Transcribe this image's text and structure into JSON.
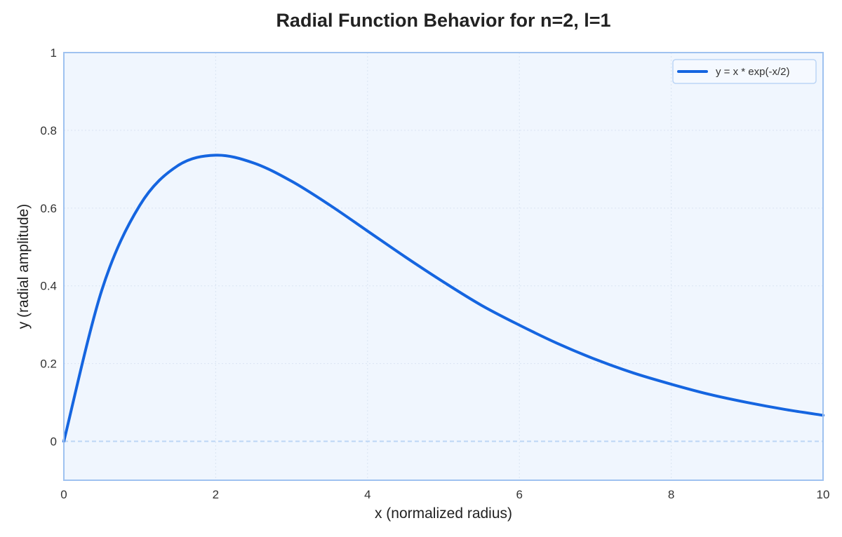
{
  "chart_data": {
    "type": "line",
    "title": "Radial Function Behavior for n=2, l=1",
    "xlabel": "x (normalized radius)",
    "ylabel": "y (radial amplitude)",
    "xlim": [
      0,
      10
    ],
    "ylim": [
      -0.1,
      1.0
    ],
    "xticks": [
      0,
      2,
      4,
      6,
      8,
      10
    ],
    "xtick_labels": [
      "0",
      "2",
      "4",
      "6",
      "8",
      "10"
    ],
    "yticks": [
      0,
      0.2,
      0.4,
      0.6,
      0.8,
      1.0
    ],
    "ytick_labels": [
      "0",
      "0.2",
      "0.4",
      "0.6",
      "0.8",
      "1"
    ],
    "grid": true,
    "zero_line": "dashed",
    "legend": {
      "position": "top-right"
    },
    "series": [
      {
        "name": "y = x * exp(-x/2)",
        "color": "#1565e0",
        "x": [
          0,
          0.5,
          1,
          1.5,
          2,
          2.5,
          3,
          3.5,
          4,
          4.5,
          5,
          5.5,
          6,
          6.5,
          7,
          7.5,
          8,
          8.5,
          9,
          9.5,
          10
        ],
        "y": [
          0,
          0.389,
          0.607,
          0.709,
          0.736,
          0.716,
          0.669,
          0.608,
          0.541,
          0.474,
          0.41,
          0.35,
          0.299,
          0.252,
          0.211,
          0.176,
          0.147,
          0.121,
          0.1,
          0.082,
          0.067
        ]
      }
    ],
    "colors": {
      "plot_background": "#f0f6fe",
      "plot_border": "#9fc2f0",
      "grid": "#d9e4f2",
      "zero_line": "#bcd5f5",
      "line": "#1565e0"
    }
  }
}
